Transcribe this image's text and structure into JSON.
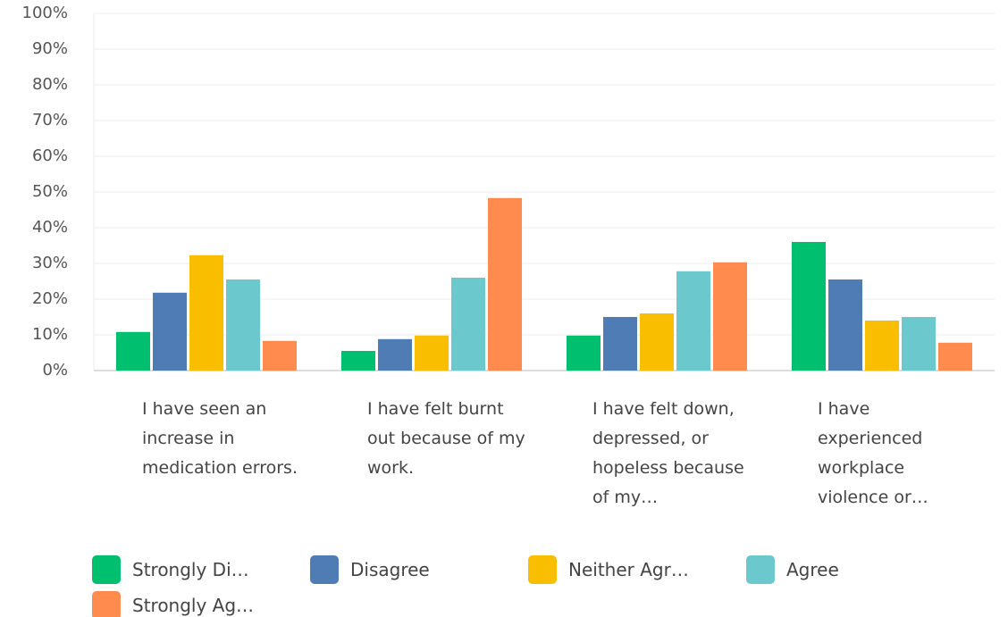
{
  "chart_data": {
    "type": "bar",
    "categories": [
      "I have seen an increase in medication errors.",
      "I have felt burnt out because of my work.",
      "I have felt down, depressed, or hopeless because of my…",
      "I have experienced workplace violence or…"
    ],
    "series": [
      {
        "name": "Strongly Di…",
        "color": "#00bf6f",
        "values": [
          10.8,
          5.5,
          9.8,
          36
        ]
      },
      {
        "name": "Disagree",
        "color": "#507cb6",
        "values": [
          21.8,
          8.8,
          15,
          25.5
        ]
      },
      {
        "name": "Neither Agr…",
        "color": "#f9be00",
        "values": [
          32.3,
          9.8,
          16,
          14
        ]
      },
      {
        "name": "Agree",
        "color": "#6bc8cd",
        "values": [
          25.5,
          26,
          27.8,
          15
        ]
      },
      {
        "name": "Strongly Ag…",
        "color": "#ff8b4f",
        "values": [
          8.3,
          48.3,
          30.3,
          7.8
        ]
      }
    ],
    "ylim": [
      0,
      100
    ],
    "yticks": [
      {
        "value": 0,
        "label": "0%"
      },
      {
        "value": 10,
        "label": "10%"
      },
      {
        "value": 20,
        "label": "20%"
      },
      {
        "value": 30,
        "label": "30%"
      },
      {
        "value": 40,
        "label": "40%"
      },
      {
        "value": 50,
        "label": "50%"
      },
      {
        "value": 60,
        "label": "60%"
      },
      {
        "value": 70,
        "label": "70%"
      },
      {
        "value": 80,
        "label": "80%"
      },
      {
        "value": 90,
        "label": "90%"
      },
      {
        "value": 100,
        "label": "100%"
      }
    ],
    "grid": true
  }
}
